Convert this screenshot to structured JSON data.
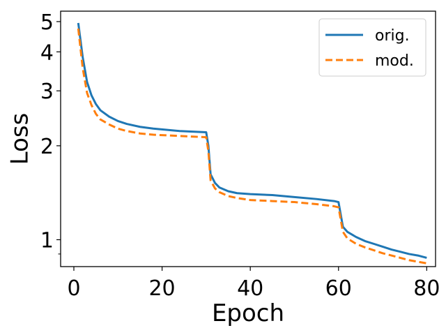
{
  "chart_data": {
    "type": "line",
    "xlabel": "Epoch",
    "ylabel": "Loss",
    "xlim": [
      -3,
      82
    ],
    "ylim": [
      0.82,
      5.4
    ],
    "yscale": "log",
    "xticks": [
      0,
      20,
      40,
      60,
      80
    ],
    "yticks": [
      1,
      2,
      3,
      4,
      5
    ],
    "grid": false,
    "legend_position": "top-right",
    "colors": {
      "orig": "#1f77b4",
      "mod": "#ff7f0e"
    },
    "series": [
      {
        "name": "orig.",
        "line_style": "solid",
        "x": [
          1,
          2,
          3,
          4,
          5,
          6,
          8,
          10,
          12,
          15,
          18,
          21,
          24,
          27,
          30,
          30.5,
          31,
          32,
          33,
          35,
          37,
          40,
          45,
          50,
          55,
          59,
          60,
          61,
          62,
          64,
          66,
          68,
          70,
          72,
          74,
          76,
          78,
          80
        ],
        "y": [
          4.95,
          3.85,
          3.2,
          2.9,
          2.72,
          2.6,
          2.48,
          2.4,
          2.35,
          2.3,
          2.27,
          2.25,
          2.23,
          2.22,
          2.21,
          2.0,
          1.62,
          1.52,
          1.47,
          1.43,
          1.41,
          1.4,
          1.39,
          1.37,
          1.35,
          1.33,
          1.32,
          1.1,
          1.06,
          1.02,
          0.99,
          0.97,
          0.95,
          0.93,
          0.915,
          0.9,
          0.89,
          0.875
        ]
      },
      {
        "name": "mod.",
        "line_style": "dashed",
        "x": [
          1,
          2,
          3,
          4,
          5,
          6,
          8,
          10,
          12,
          15,
          18,
          21,
          24,
          27,
          30,
          30.5,
          31,
          32,
          33,
          35,
          37,
          40,
          45,
          50,
          55,
          59,
          60,
          61,
          62,
          64,
          66,
          68,
          70,
          72,
          74,
          76,
          78,
          80
        ],
        "y": [
          4.75,
          3.55,
          2.95,
          2.7,
          2.53,
          2.43,
          2.34,
          2.27,
          2.23,
          2.19,
          2.17,
          2.16,
          2.15,
          2.14,
          2.13,
          1.92,
          1.55,
          1.46,
          1.42,
          1.38,
          1.36,
          1.34,
          1.33,
          1.32,
          1.3,
          1.28,
          1.27,
          1.06,
          1.01,
          0.97,
          0.945,
          0.925,
          0.905,
          0.89,
          0.875,
          0.86,
          0.85,
          0.84
        ]
      }
    ]
  }
}
